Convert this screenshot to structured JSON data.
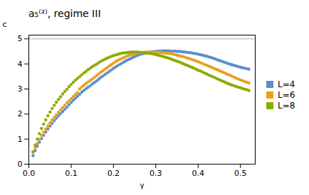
{
  "chart_data": {
    "type": "scatter",
    "title": "a₅⁽²⁾, regime III",
    "xlabel": "γ",
    "ylabel": "c",
    "xlim": [
      0,
      0.535
    ],
    "ylim": [
      0,
      5.15
    ],
    "xticks": [
      {
        "value": 0.0,
        "label": "0.0"
      },
      0.1,
      0.2,
      0.3,
      0.4,
      0.5
    ],
    "yticks": [
      0,
      1,
      2,
      3,
      4,
      5
    ],
    "grid": false,
    "legend": "right",
    "marker": "circle",
    "hline": {
      "y": 5,
      "color": "#aaaaaa"
    },
    "x": [
      0.01,
      0.015,
      0.02,
      0.025,
      0.03,
      0.035,
      0.04,
      0.045,
      0.05,
      0.055,
      0.06,
      0.065,
      0.07,
      0.075,
      0.08,
      0.085,
      0.09,
      0.095,
      0.1,
      0.105,
      0.11,
      0.115,
      0.12,
      0.125,
      0.13,
      0.135,
      0.14,
      0.145,
      0.15,
      0.155,
      0.16,
      0.165,
      0.17,
      0.175,
      0.18,
      0.185,
      0.19,
      0.195,
      0.2,
      0.205,
      0.21,
      0.215,
      0.22,
      0.225,
      0.23,
      0.235,
      0.24,
      0.245,
      0.25,
      0.255,
      0.26,
      0.265,
      0.27,
      0.275,
      0.28,
      0.285,
      0.29,
      0.295,
      0.3,
      0.305,
      0.31,
      0.315,
      0.32,
      0.325,
      0.33,
      0.335,
      0.34,
      0.345,
      0.35,
      0.355,
      0.36,
      0.365,
      0.37,
      0.375,
      0.38,
      0.385,
      0.39,
      0.395,
      0.4,
      0.405,
      0.41,
      0.415,
      0.42,
      0.425,
      0.43,
      0.435,
      0.44,
      0.445,
      0.45,
      0.455,
      0.46,
      0.465,
      0.47,
      0.475,
      0.48,
      0.485,
      0.49,
      0.495,
      0.5,
      0.505,
      0.51,
      0.515,
      0.52
    ],
    "series": [
      {
        "name": "L=4",
        "color": "#5b8fcc",
        "values": [
          0.34,
          0.54,
          0.72,
          0.88,
          1.02,
          1.15,
          1.28,
          1.4,
          1.52,
          1.63,
          1.74,
          1.84,
          1.93,
          2.02,
          2.1,
          2.19,
          2.27,
          2.37,
          2.46,
          2.55,
          2.63,
          2.71,
          2.79,
          2.87,
          2.94,
          3.01,
          3.07,
          3.13,
          3.2,
          3.26,
          3.32,
          3.39,
          3.46,
          3.52,
          3.58,
          3.64,
          3.7,
          3.76,
          3.82,
          3.88,
          3.93,
          3.98,
          4.03,
          4.08,
          4.13,
          4.17,
          4.21,
          4.25,
          4.29,
          4.33,
          4.36,
          4.39,
          4.41,
          4.43,
          4.45,
          4.47,
          4.48,
          4.49,
          4.5,
          4.51,
          4.51,
          4.52,
          4.52,
          4.52,
          4.52,
          4.51,
          4.51,
          4.51,
          4.5,
          4.5,
          4.49,
          4.48,
          4.47,
          4.46,
          4.45,
          4.44,
          4.42,
          4.41,
          4.39,
          4.37,
          4.35,
          4.33,
          4.31,
          4.28,
          4.26,
          4.23,
          4.2,
          4.17,
          4.14,
          4.11,
          4.08,
          4.05,
          4.02,
          3.99,
          3.97,
          3.94,
          3.92,
          3.89,
          3.87,
          3.85,
          3.83,
          3.81,
          3.79
        ]
      },
      {
        "name": "L=6",
        "color": "#e8a020",
        "values": [
          0.47,
          0.66,
          0.83,
          1.0,
          1.15,
          1.28,
          1.41,
          1.53,
          1.65,
          1.76,
          1.87,
          1.97,
          2.07,
          2.17,
          2.26,
          2.35,
          2.44,
          2.53,
          2.61,
          2.7,
          2.78,
          2.86,
          3.0,
          3.08,
          3.15,
          3.22,
          3.28,
          3.34,
          3.4,
          3.47,
          3.53,
          3.6,
          3.67,
          3.73,
          3.79,
          3.85,
          3.91,
          3.97,
          4.03,
          4.09,
          4.14,
          4.18,
          4.22,
          4.26,
          4.3,
          4.33,
          4.36,
          4.38,
          4.41,
          4.43,
          4.44,
          4.45,
          4.46,
          4.47,
          4.47,
          4.47,
          4.47,
          4.47,
          4.47,
          4.46,
          4.46,
          4.45,
          4.44,
          4.43,
          4.42,
          4.41,
          4.39,
          4.37,
          4.35,
          4.33,
          4.31,
          4.29,
          4.26,
          4.23,
          4.21,
          4.18,
          4.15,
          4.12,
          4.09,
          4.05,
          4.02,
          3.98,
          3.95,
          3.91,
          3.88,
          3.84,
          3.8,
          3.77,
          3.73,
          3.7,
          3.66,
          3.62,
          3.58,
          3.55,
          3.51,
          3.47,
          3.43,
          3.4,
          3.36,
          3.33,
          3.3,
          3.27,
          3.24
        ]
      },
      {
        "name": "L=8",
        "color": "#8aac00",
        "values": [
          0.5,
          0.76,
          1.0,
          1.22,
          1.42,
          1.6,
          1.77,
          1.93,
          2.08,
          2.22,
          2.35,
          2.47,
          2.58,
          2.69,
          2.8,
          2.9,
          2.99,
          3.09,
          3.18,
          3.27,
          3.35,
          3.42,
          3.49,
          3.57,
          3.64,
          3.7,
          3.77,
          3.83,
          3.89,
          3.94,
          3.99,
          4.05,
          4.1,
          4.15,
          4.19,
          4.23,
          4.27,
          4.3,
          4.33,
          4.36,
          4.38,
          4.41,
          4.43,
          4.44,
          4.45,
          4.46,
          4.47,
          4.47,
          4.47,
          4.47,
          4.47,
          4.46,
          4.45,
          4.44,
          4.43,
          4.42,
          4.41,
          4.39,
          4.37,
          4.35,
          4.33,
          4.31,
          4.28,
          4.26,
          4.23,
          4.2,
          4.17,
          4.14,
          4.11,
          4.08,
          4.04,
          4.01,
          3.97,
          3.94,
          3.9,
          3.87,
          3.83,
          3.79,
          3.75,
          3.72,
          3.68,
          3.64,
          3.6,
          3.56,
          3.52,
          3.49,
          3.45,
          3.41,
          3.37,
          3.33,
          3.3,
          3.26,
          3.22,
          3.19,
          3.16,
          3.13,
          3.1,
          3.07,
          3.05,
          3.02,
          2.99,
          2.97,
          2.94
        ]
      }
    ]
  }
}
